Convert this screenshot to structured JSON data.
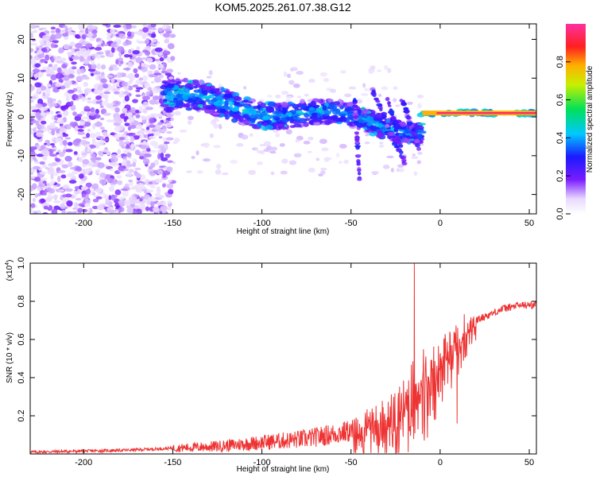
{
  "title": "KOM5.2025.261.07.38.G12",
  "chart_data": [
    {
      "type": "heatmap",
      "name": "spectrogram",
      "xlabel": "Height of straight line (km)",
      "ylabel": "Frequency (Hz)",
      "xlim": [
        -230,
        54
      ],
      "ylim": [
        -25,
        24
      ],
      "x_ticks": [
        -200,
        -150,
        -100,
        -50,
        0,
        50
      ],
      "y_ticks": [
        -20,
        -10,
        0,
        10,
        20
      ],
      "colorbar": {
        "label": "Normalized spectral amplitude",
        "range": [
          0,
          1
        ],
        "ticks": [
          0.0,
          0.2,
          0.4,
          0.6,
          0.8
        ]
      },
      "features": [
        {
          "desc": "diffuse noise",
          "x_range": [
            -230,
            -150
          ],
          "freq_range": [
            -25,
            24
          ],
          "amplitude": 0.12
        },
        {
          "desc": "converging ridge",
          "x_start": -155,
          "x_end": -10,
          "freq_start": 5,
          "freq_end": -3,
          "amplitude": 0.45
        },
        {
          "desc": "carrier line",
          "x_range": [
            -10,
            54
          ],
          "freq": 1,
          "amplitude": 0.95
        }
      ]
    },
    {
      "type": "line",
      "name": "snr",
      "xlabel": "Height of straight line (km)",
      "ylabel": "SNR (10 * v/v)",
      "scale_label": "(x10",
      "scale_exp": "4",
      "xlim": [
        -230,
        54
      ],
      "ylim": [
        0,
        1.0
      ],
      "x_ticks": [
        -200,
        -150,
        -100,
        -50,
        0,
        50
      ],
      "y_ticks": [
        0.2,
        0.4,
        0.6,
        0.8,
        1.0
      ],
      "series": [
        {
          "name": "SNR",
          "color": "#ee3333",
          "x": [
            -230,
            -200,
            -175,
            -150,
            -125,
            -100,
            -75,
            -50,
            -35,
            -25,
            -20,
            -15,
            -10,
            -5,
            0,
            5,
            10,
            15,
            25,
            35,
            45,
            54
          ],
          "y": [
            0.01,
            0.015,
            0.02,
            0.03,
            0.04,
            0.06,
            0.08,
            0.12,
            0.18,
            0.22,
            0.28,
            0.35,
            0.4,
            0.45,
            0.5,
            0.55,
            0.6,
            0.68,
            0.72,
            0.76,
            0.78,
            0.78
          ]
        }
      ],
      "annotations": [
        {
          "desc": "spike",
          "x": -14.5,
          "y": 1.0
        },
        {
          "desc": "dip",
          "x": 9.5,
          "y": 0.16
        }
      ]
    }
  ]
}
